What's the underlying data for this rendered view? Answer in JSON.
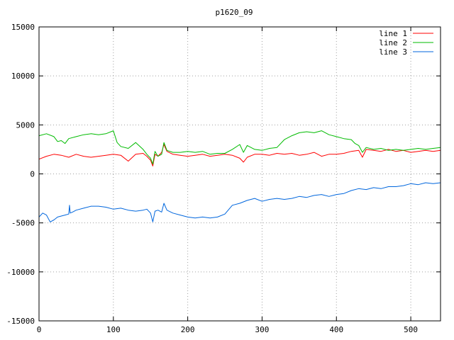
{
  "chart_data": {
    "type": "line",
    "title": "p1620_09",
    "xlabel": "",
    "ylabel": "",
    "xlim": [
      0,
      540
    ],
    "ylim": [
      -15000,
      15000
    ],
    "xticks": [
      0,
      100,
      200,
      300,
      400,
      500
    ],
    "yticks": [
      -15000,
      -10000,
      -5000,
      0,
      5000,
      10000,
      15000
    ],
    "grid": true,
    "legend_position": "top-right",
    "series": [
      {
        "name": "line 1",
        "color": "#ff0000",
        "x": [
          0,
          10,
          20,
          30,
          40,
          50,
          60,
          70,
          80,
          90,
          100,
          110,
          120,
          130,
          140,
          145,
          150,
          153,
          156,
          160,
          165,
          168,
          172,
          180,
          190,
          200,
          210,
          220,
          230,
          240,
          250,
          260,
          270,
          275,
          280,
          290,
          300,
          310,
          320,
          330,
          340,
          350,
          360,
          370,
          380,
          390,
          400,
          410,
          420,
          430,
          435,
          440,
          450,
          460,
          470,
          480,
          490,
          500,
          510,
          520,
          530,
          540
        ],
        "y": [
          1500,
          1800,
          2000,
          1900,
          1700,
          2000,
          1800,
          1700,
          1800,
          1900,
          2000,
          1900,
          1300,
          2000,
          2100,
          1800,
          1400,
          800,
          2000,
          1800,
          2200,
          3000,
          2300,
          2000,
          1900,
          1800,
          1900,
          2000,
          1800,
          1900,
          2000,
          1900,
          1600,
          1200,
          1700,
          2000,
          2000,
          1900,
          2100,
          2000,
          2100,
          1900,
          2000,
          2200,
          1800,
          2000,
          2000,
          2100,
          2300,
          2400,
          1700,
          2500,
          2400,
          2300,
          2500,
          2300,
          2400,
          2200,
          2300,
          2400,
          2300,
          2400
        ]
      },
      {
        "name": "line 2",
        "color": "#00bb00",
        "x": [
          0,
          10,
          20,
          25,
          30,
          35,
          40,
          50,
          60,
          70,
          80,
          90,
          100,
          105,
          110,
          120,
          130,
          140,
          145,
          150,
          153,
          156,
          160,
          165,
          168,
          172,
          180,
          190,
          200,
          210,
          220,
          230,
          240,
          250,
          260,
          270,
          275,
          280,
          290,
          300,
          310,
          320,
          330,
          340,
          350,
          360,
          370,
          380,
          390,
          400,
          410,
          420,
          425,
          430,
          435,
          440,
          450,
          460,
          470,
          480,
          490,
          500,
          510,
          520,
          530,
          540
        ],
        "y": [
          3900,
          4100,
          3800,
          3300,
          3400,
          3100,
          3600,
          3800,
          4000,
          4100,
          4000,
          4100,
          4400,
          3200,
          2800,
          2600,
          3200,
          2500,
          2000,
          1600,
          1000,
          2300,
          1800,
          2000,
          3200,
          2400,
          2200,
          2200,
          2300,
          2200,
          2300,
          2000,
          2100,
          2100,
          2500,
          3000,
          2200,
          2900,
          2500,
          2400,
          2600,
          2700,
          3500,
          3900,
          4200,
          4300,
          4200,
          4400,
          4000,
          3800,
          3600,
          3500,
          3100,
          2900,
          2200,
          2700,
          2500,
          2600,
          2400,
          2500,
          2400,
          2500,
          2600,
          2500,
          2600,
          2700
        ]
      },
      {
        "name": "line 3",
        "color": "#0066dd",
        "x": [
          0,
          5,
          10,
          15,
          20,
          25,
          30,
          35,
          40,
          41,
          42,
          45,
          50,
          60,
          70,
          80,
          90,
          100,
          110,
          120,
          130,
          140,
          145,
          150,
          153,
          156,
          160,
          165,
          168,
          172,
          180,
          190,
          200,
          210,
          220,
          230,
          240,
          250,
          260,
          270,
          280,
          290,
          300,
          310,
          320,
          330,
          340,
          350,
          360,
          370,
          380,
          390,
          400,
          410,
          420,
          430,
          440,
          450,
          460,
          470,
          480,
          490,
          500,
          510,
          520,
          530,
          540
        ],
        "y": [
          -4400,
          -4000,
          -4200,
          -4900,
          -4700,
          -4400,
          -4300,
          -4200,
          -4100,
          -3200,
          -4000,
          -3900,
          -3700,
          -3500,
          -3300,
          -3300,
          -3400,
          -3600,
          -3500,
          -3700,
          -3800,
          -3700,
          -3600,
          -4000,
          -4900,
          -3800,
          -3700,
          -3900,
          -3000,
          -3700,
          -4000,
          -4200,
          -4400,
          -4500,
          -4400,
          -4500,
          -4400,
          -4100,
          -3200,
          -3000,
          -2700,
          -2500,
          -2800,
          -2600,
          -2500,
          -2600,
          -2500,
          -2300,
          -2400,
          -2200,
          -2100,
          -2300,
          -2100,
          -2000,
          -1700,
          -1500,
          -1600,
          -1400,
          -1500,
          -1300,
          -1300,
          -1200,
          -1000,
          -1100,
          -900,
          -1000,
          -900
        ]
      }
    ]
  }
}
